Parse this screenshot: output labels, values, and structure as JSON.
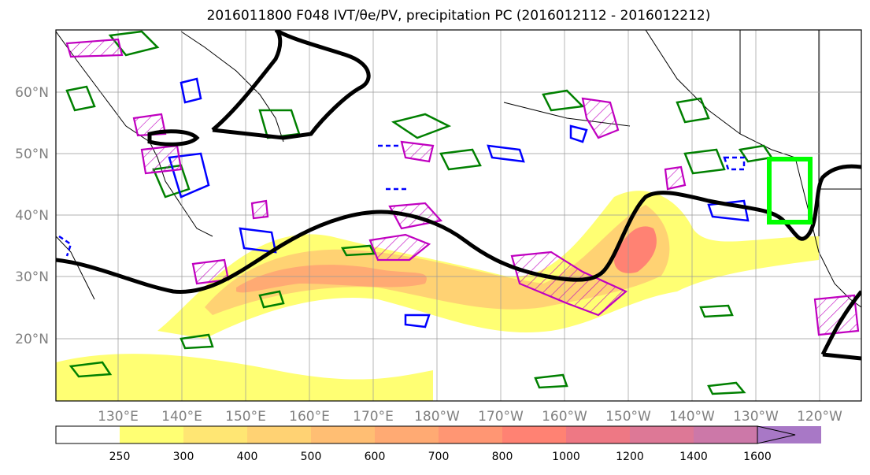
{
  "title": "2016011800 F048 IVT/θe/PV, precipitation PC (2016012112 - 2016012212)",
  "map": {
    "lat_labels": [
      "60°N",
      "50°N",
      "40°N",
      "30°N",
      "20°N"
    ],
    "lon_labels": [
      "130°E",
      "140°E",
      "150°E",
      "160°E",
      "170°E",
      "180°W",
      "170°W",
      "160°W",
      "150°W",
      "140°W",
      "130°W",
      "120°W"
    ]
  },
  "colorbar": {
    "levels": [
      "250",
      "300",
      "400",
      "500",
      "600",
      "700",
      "800",
      "1000",
      "1200",
      "1400",
      "1600"
    ],
    "colors": [
      "#ffff73",
      "#ffe673",
      "#ffd273",
      "#ffbe73",
      "#ffaa73",
      "#ff9673",
      "#ff8273",
      "#ee7884",
      "#dd7896",
      "#cc78a8",
      "#a878c6"
    ]
  },
  "contour_colors": {
    "theta_e": "#000000",
    "ivt_green": "#008000",
    "ivt_blue": "#0000ff",
    "pv_magenta": "#c000c0",
    "target_box": "#00ff00"
  }
}
